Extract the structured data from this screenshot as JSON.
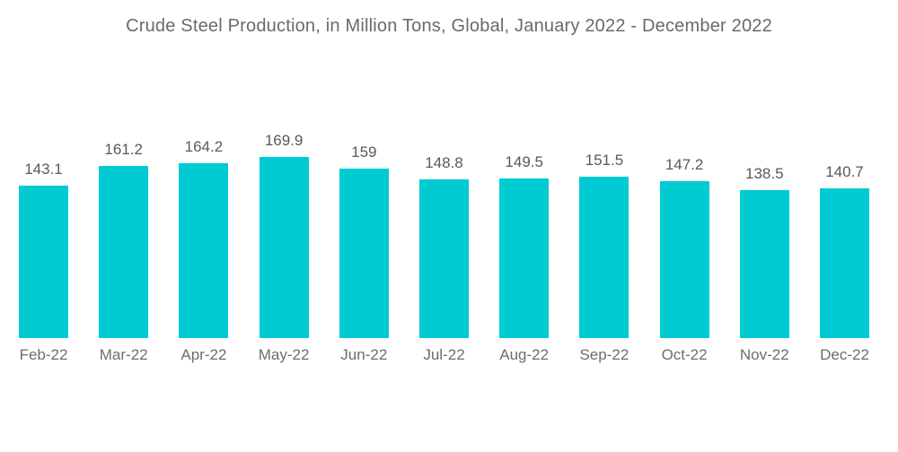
{
  "chart_data": {
    "type": "bar",
    "title": "Crude Steel Production, in Million Tons, Global, January 2022 - December 2022",
    "categories": [
      "Feb-22",
      "Mar-22",
      "Apr-22",
      "May-22",
      "Jun-22",
      "Jul-22",
      "Aug-22",
      "Sep-22",
      "Oct-22",
      "Nov-22",
      "Dec-22"
    ],
    "values": [
      143.1,
      161.2,
      164.2,
      169.9,
      159,
      148.8,
      149.5,
      151.5,
      147.2,
      138.5,
      140.7
    ],
    "xlabel": "",
    "ylabel": "",
    "ylim": [
      0,
      180
    ],
    "grid": false,
    "legend": "none",
    "data_labels": true,
    "bar_color": "#00CBD2",
    "title_color": "#6A6A6A",
    "value_label_color": "#58595B",
    "category_label_color": "#6D6D6D",
    "background_color": "#FFFFFF"
  }
}
